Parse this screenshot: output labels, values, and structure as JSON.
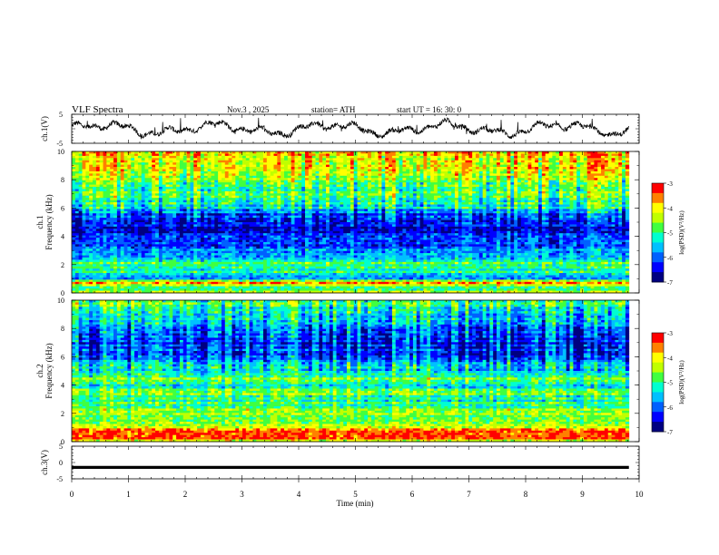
{
  "header": {
    "title": "VLF  Spectra",
    "date": "Nov.3  , 2025",
    "station": "station= ATH",
    "start": "start  UT  =    16: 30: 0"
  },
  "colors": {
    "scale": [
      "#000080",
      "#0000ff",
      "#0060ff",
      "#00c0ff",
      "#00ffd0",
      "#40ff40",
      "#c0ff00",
      "#ffff00",
      "#ff8000",
      "#ff0000",
      "#ffffff"
    ]
  },
  "chart_data": [
    {
      "type": "line",
      "title": "ch.1(V)",
      "ylabel": "ch.1(V)",
      "xlim": [
        0,
        10
      ],
      "ylim": [
        -5,
        5
      ],
      "yticks": [
        "5",
        "-5"
      ],
      "description_values": {
        "x_end": 9.82,
        "baseline": 0,
        "amplitude": 3
      }
    },
    {
      "type": "heatmap",
      "title": "ch.1 Frequency (kHz)",
      "ylabel": "ch.1\nFrequency  (kHz)",
      "xlim": [
        0,
        10
      ],
      "ylim": [
        0,
        10
      ],
      "yticks": [
        "0",
        "2",
        "4",
        "6",
        "8",
        "10"
      ],
      "colorbar": {
        "label": "log(PSD)(V²/Hz)",
        "range": [
          -7,
          -3
        ],
        "ticks": [
          "-3",
          "-4",
          "-5",
          "-6",
          "-7"
        ]
      },
      "profile": [
        [
          0.0,
          -4.0
        ],
        [
          0.3,
          -5.4
        ],
        [
          0.7,
          -3.6
        ],
        [
          1.0,
          -5.8
        ],
        [
          1.5,
          -5.0
        ],
        [
          1.9,
          -5.3
        ],
        [
          2.1,
          -4.6
        ],
        [
          2.4,
          -5.5
        ],
        [
          3.0,
          -5.9
        ],
        [
          3.5,
          -6.4
        ],
        [
          4.0,
          -6.2
        ],
        [
          4.5,
          -6.6
        ],
        [
          5.0,
          -6.5
        ],
        [
          5.5,
          -6.3
        ],
        [
          6.0,
          -5.6
        ],
        [
          7.0,
          -5.1
        ],
        [
          8.0,
          -4.8
        ],
        [
          9.0,
          -4.4
        ],
        [
          10.0,
          -4.0
        ]
      ]
    },
    {
      "type": "heatmap",
      "title": "ch.2 Frequency (kHz)",
      "ylabel": "ch.2\nFrequency  (kHz)",
      "xlim": [
        0,
        10
      ],
      "ylim": [
        0,
        10
      ],
      "yticks": [
        "0",
        "2",
        "4",
        "6",
        "8",
        "10"
      ],
      "colorbar": {
        "label": "log(PSD)(V²/Hz)",
        "range": [
          -7,
          -3
        ],
        "ticks": [
          "-3",
          "-4",
          "-5",
          "-6",
          "-7"
        ]
      },
      "profile": [
        [
          0.0,
          -4.3
        ],
        [
          0.4,
          -3.2
        ],
        [
          0.8,
          -3.4
        ],
        [
          1.0,
          -4.2
        ],
        [
          1.5,
          -4.9
        ],
        [
          2.0,
          -4.4
        ],
        [
          2.5,
          -4.9
        ],
        [
          3.0,
          -5.2
        ],
        [
          3.5,
          -4.7
        ],
        [
          4.0,
          -5.4
        ],
        [
          4.5,
          -4.8
        ],
        [
          5.0,
          -5.6
        ],
        [
          5.5,
          -5.8
        ],
        [
          6.0,
          -6.3
        ],
        [
          7.0,
          -6.5
        ],
        [
          8.0,
          -6.0
        ],
        [
          9.0,
          -5.5
        ],
        [
          10.0,
          -5.1
        ]
      ]
    },
    {
      "type": "line",
      "title": "ch.3(V)",
      "ylabel": "ch.3(V)",
      "xlim": [
        0,
        10
      ],
      "ylim": [
        -5,
        5
      ],
      "yticks": [
        "5",
        "0",
        "-5"
      ],
      "xlabel": "Time  (min)",
      "xticks": [
        "0",
        "1",
        "2",
        "3",
        "4",
        "5",
        "6",
        "7",
        "8",
        "9",
        "10"
      ],
      "description_values": {
        "x_end": 9.82,
        "level": -1.5
      }
    }
  ]
}
